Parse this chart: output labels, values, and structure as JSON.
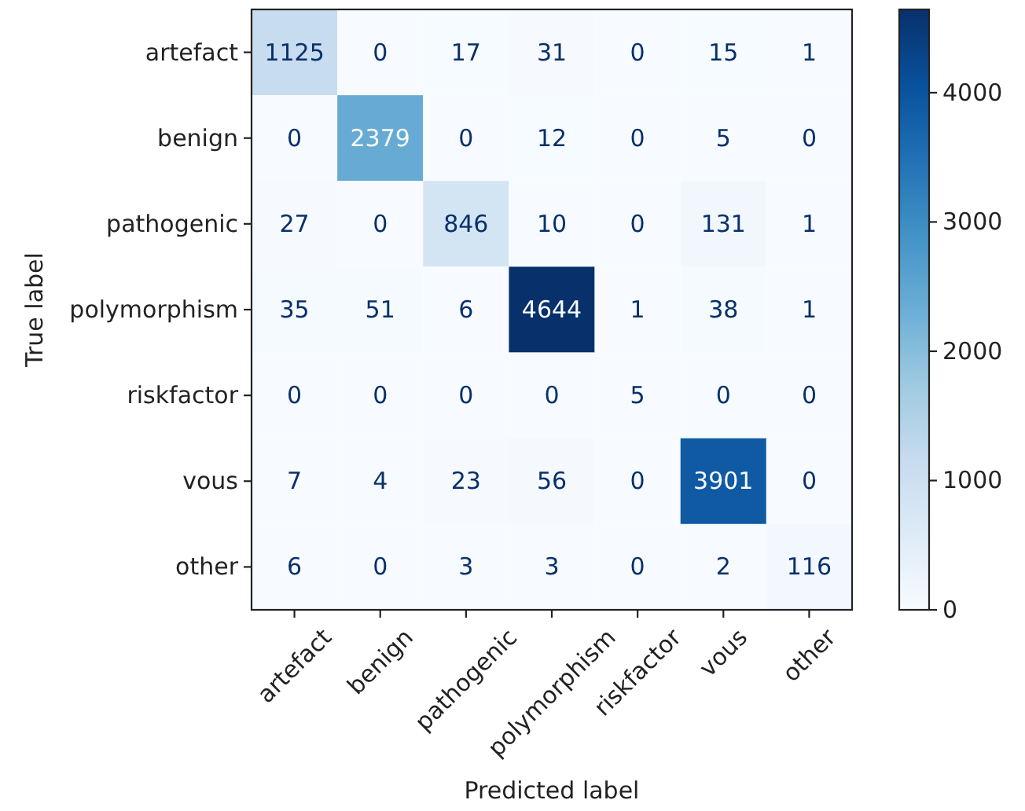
{
  "chart_data": {
    "type": "heatmap",
    "xlabel": "Predicted label",
    "ylabel": "True label",
    "categories": [
      "artefact",
      "benign",
      "pathogenic",
      "polymorphism",
      "riskfactor",
      "vous",
      "other"
    ],
    "y_categories": [
      "artefact",
      "benign",
      "pathogenic",
      "polymorphism",
      "riskfactor",
      "vous",
      "other"
    ],
    "cells": [
      [
        1125,
        0,
        17,
        31,
        0,
        15,
        1
      ],
      [
        0,
        2379,
        0,
        12,
        0,
        5,
        0
      ],
      [
        27,
        0,
        846,
        10,
        0,
        131,
        1
      ],
      [
        35,
        51,
        6,
        4644,
        1,
        38,
        1
      ],
      [
        0,
        0,
        0,
        0,
        5,
        0,
        0
      ],
      [
        7,
        4,
        23,
        56,
        0,
        3901,
        0
      ],
      [
        6,
        0,
        3,
        3,
        0,
        2,
        116
      ]
    ],
    "clim": [
      0,
      4644
    ],
    "cticks": [
      0,
      1000,
      2000,
      3000,
      4000
    ],
    "data_labels": true
  }
}
